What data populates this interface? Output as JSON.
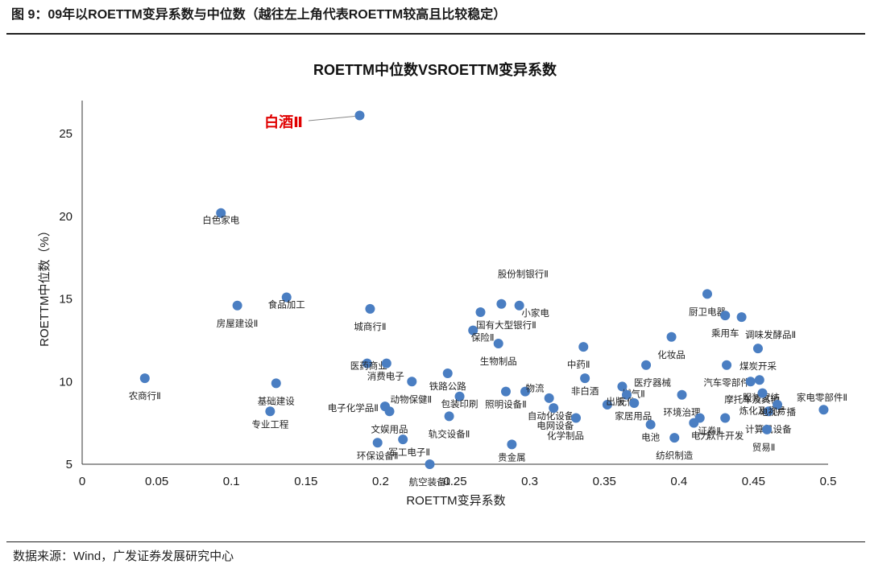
{
  "header": {
    "figure_title": "图 9：09年以ROETTM变异系数与中位数（越往左上角代表ROETTM较高且比较稳定）"
  },
  "footer": {
    "source": "数据来源：Wind，广发证券发展研究中心"
  },
  "colors": {
    "point": "#4a7ec2",
    "highlight_label": "#e00000",
    "axis": "#333333",
    "rule": "#1f1f1f"
  },
  "chart_data": {
    "type": "scatter",
    "title": "ROETTM中位数VSROETTM变异系数",
    "xlabel": "ROETTM变异系数",
    "ylabel": "ROETTM中位数（%）",
    "xlim": [
      0,
      0.5
    ],
    "ylim": [
      5,
      27
    ],
    "x_ticks": [
      "0",
      "0.05",
      "0.1",
      "0.15",
      "0.2",
      "0.25",
      "0.3",
      "0.35",
      "0.4",
      "0.45",
      "0.5"
    ],
    "y_ticks": [
      "5",
      "10",
      "15",
      "20",
      "25"
    ],
    "grid": false,
    "legend": "none",
    "points": [
      {
        "label": "白酒Ⅱ",
        "x": 0.186,
        "y": 26.1,
        "highlight": true
      },
      {
        "label": "白色家电",
        "x": 0.093,
        "y": 20.2
      },
      {
        "label": "食品加工",
        "x": 0.137,
        "y": 15.1
      },
      {
        "label": "房屋建设Ⅱ",
        "x": 0.104,
        "y": 14.6
      },
      {
        "label": "城商行Ⅱ",
        "x": 0.193,
        "y": 14.4
      },
      {
        "label": "农商行Ⅱ",
        "x": 0.042,
        "y": 10.2
      },
      {
        "label": "基础建设",
        "x": 0.13,
        "y": 9.9
      },
      {
        "label": "专业工程",
        "x": 0.126,
        "y": 8.2
      },
      {
        "label": "医药商业",
        "x": 0.191,
        "y": 11.1
      },
      {
        "label": "消费电子",
        "x": 0.204,
        "y": 11.1
      },
      {
        "label": "动物保健Ⅱ",
        "x": 0.221,
        "y": 10.0
      },
      {
        "label": "电子化学品Ⅱ",
        "x": 0.203,
        "y": 8.5
      },
      {
        "label": "文娱用品",
        "x": 0.206,
        "y": 8.2
      },
      {
        "label": "环保设备Ⅱ",
        "x": 0.198,
        "y": 6.3
      },
      {
        "label": "军工电子Ⅱ",
        "x": 0.215,
        "y": 6.5
      },
      {
        "label": "航空装备Ⅱ",
        "x": 0.233,
        "y": 5.0
      },
      {
        "label": "铁路公路",
        "x": 0.245,
        "y": 10.5
      },
      {
        "label": "包装印刷",
        "x": 0.253,
        "y": 9.1
      },
      {
        "label": "轨交设备Ⅱ",
        "x": 0.246,
        "y": 7.9
      },
      {
        "label": "股份制银行Ⅱ",
        "x": 0.281,
        "y": 14.7
      },
      {
        "label": "国有大型银行Ⅱ",
        "x": 0.267,
        "y": 14.2
      },
      {
        "label": "小家电",
        "x": 0.293,
        "y": 14.6
      },
      {
        "label": "保险Ⅱ",
        "x": 0.262,
        "y": 13.1
      },
      {
        "label": "生物制品",
        "x": 0.279,
        "y": 12.3
      },
      {
        "label": "照明设备Ⅱ",
        "x": 0.284,
        "y": 9.4
      },
      {
        "label": "物流",
        "x": 0.297,
        "y": 9.4
      },
      {
        "label": "自动化设备",
        "x": 0.313,
        "y": 9.0
      },
      {
        "label": "电网设备",
        "x": 0.316,
        "y": 8.4
      },
      {
        "label": "贵金属",
        "x": 0.288,
        "y": 6.2
      },
      {
        "label": "化学制品",
        "x": 0.331,
        "y": 7.8
      },
      {
        "label": "中药Ⅱ",
        "x": 0.336,
        "y": 12.1
      },
      {
        "label": "非白酒",
        "x": 0.337,
        "y": 10.2
      },
      {
        "label": "燃气Ⅱ",
        "x": 0.362,
        "y": 9.7
      },
      {
        "label": "出版",
        "x": 0.352,
        "y": 8.6
      },
      {
        "label": "元件",
        "x": 0.365,
        "y": 9.2
      },
      {
        "label": "家居用品",
        "x": 0.37,
        "y": 8.7
      },
      {
        "label": "电池",
        "x": 0.381,
        "y": 7.4
      },
      {
        "label": "化妆品",
        "x": 0.395,
        "y": 12.7
      },
      {
        "label": "医疗器械",
        "x": 0.378,
        "y": 11.0
      },
      {
        "label": "环境治理",
        "x": 0.402,
        "y": 9.2
      },
      {
        "label": "纺织制造",
        "x": 0.397,
        "y": 6.6
      },
      {
        "label": "电力",
        "x": 0.41,
        "y": 7.5
      },
      {
        "label": "证券Ⅱ",
        "x": 0.414,
        "y": 7.8
      },
      {
        "label": "软件开发",
        "x": 0.431,
        "y": 7.8
      },
      {
        "label": "厨卫电器",
        "x": 0.419,
        "y": 15.3
      },
      {
        "label": "乘用车",
        "x": 0.431,
        "y": 14.0
      },
      {
        "label": "调味发酵品Ⅱ",
        "x": 0.442,
        "y": 13.9
      },
      {
        "label": "煤炭开采",
        "x": 0.453,
        "y": 12.0
      },
      {
        "label": "汽车零部件",
        "x": 0.432,
        "y": 11.0
      },
      {
        "label": "摩托车及其他",
        "x": 0.448,
        "y": 10.0
      },
      {
        "label": "服装家纺",
        "x": 0.454,
        "y": 10.1
      },
      {
        "label": "炼化及贸易",
        "x": 0.456,
        "y": 9.3
      },
      {
        "label": "计算机设备",
        "x": 0.46,
        "y": 8.2
      },
      {
        "label": "贸易Ⅱ",
        "x": 0.459,
        "y": 7.1
      },
      {
        "label": "家电零部件Ⅱ",
        "x": 0.497,
        "y": 8.3
      },
      {
        "label": "电视广播",
        "x": 0.466,
        "y": 8.6
      }
    ]
  }
}
